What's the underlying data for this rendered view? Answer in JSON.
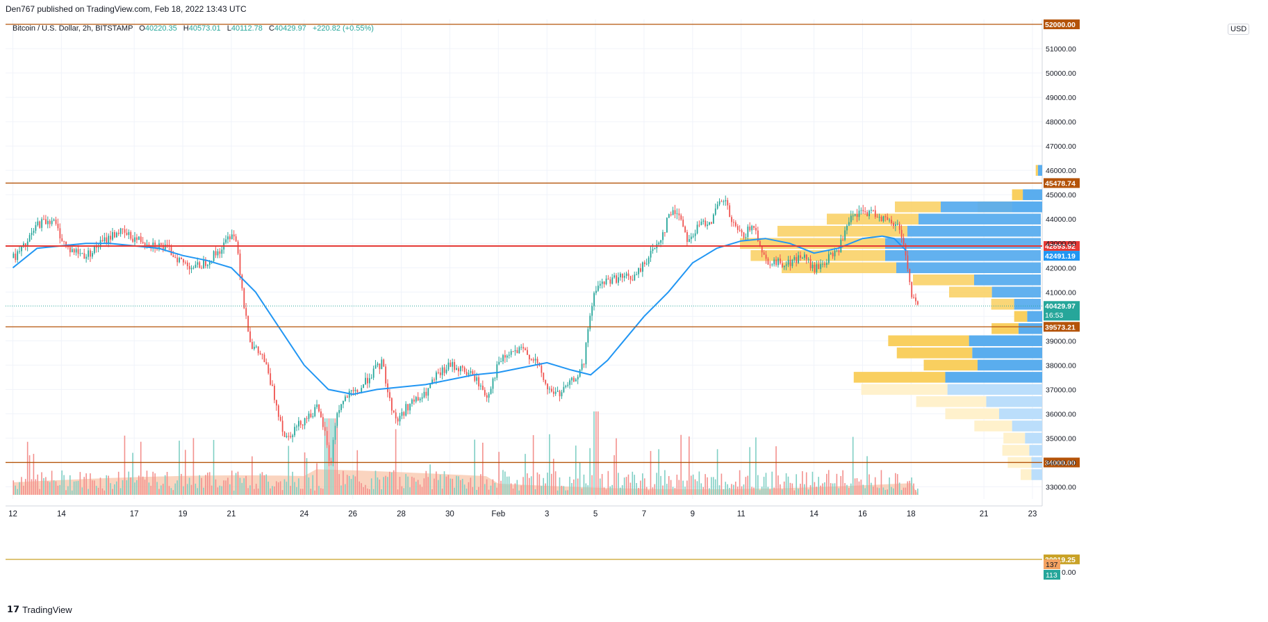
{
  "header": {
    "published": "Den767 published on TradingView.com, Feb 18, 2022 13:43 UTC"
  },
  "legend": {
    "symbol": "Bitcoin / U.S. Dollar, 2h, BITSTAMP",
    "open_label": "O",
    "open": "40220.35",
    "high_label": "H",
    "high": "40573.01",
    "low_label": "L",
    "low": "40112.78",
    "close_label": "C",
    "close": "40429.97",
    "change": "+220.82 (+0.55%)"
  },
  "currency": "USD",
  "footer": {
    "brand": "TradingView"
  },
  "colors": {
    "up": "#26a69a",
    "down": "#ef5350",
    "ma": "#2196f3",
    "level": "#b45309",
    "red_level": "#e53935",
    "vp_up": "#f9cf5f",
    "vp_down": "#5aadee"
  },
  "chart_data": {
    "type": "candlestick",
    "title": "Bitcoin / U.S. Dollar, 2h, BITSTAMP",
    "ylim": [
      32500,
      52200
    ],
    "y_ticks": [
      33000,
      34000,
      35000,
      36000,
      37000,
      38000,
      39000,
      40000,
      41000,
      42000,
      43000,
      44000,
      45000,
      46000,
      47000,
      48000,
      49000,
      50000,
      51000
    ],
    "y_tick_labels": [
      "33000.00",
      "34000.00",
      "35000.00",
      "36000.00",
      "37000.00",
      "38000.00",
      "39000.00",
      "40000.00",
      "41000.00",
      "42000.00",
      "43000.00",
      "44000.00",
      "45000.00",
      "46000.00",
      "47000.00",
      "48000.00",
      "49000.00",
      "50000.00",
      "51000.00"
    ],
    "x_tick_labels": [
      "12",
      "14",
      "17",
      "19",
      "21",
      "24",
      "26",
      "28",
      "30",
      "Feb",
      "3",
      "5",
      "7",
      "9",
      "11",
      "14",
      "16",
      "18",
      "21",
      "23"
    ],
    "x_tick_days": [
      0,
      2,
      5,
      7,
      9,
      12,
      14,
      16,
      18,
      20,
      22,
      24,
      26,
      28,
      30,
      33,
      35,
      37,
      40,
      42
    ],
    "x_day_range": [
      -0.3,
      42.4
    ],
    "last_bar_day": 37.3,
    "price_path": [
      [
        0,
        42400
      ],
      [
        0.5,
        42900
      ],
      [
        1,
        43800
      ],
      [
        1.6,
        44000
      ],
      [
        2.2,
        42800
      ],
      [
        3,
        42500
      ],
      [
        3.6,
        43000
      ],
      [
        4.3,
        43500
      ],
      [
        5,
        43200
      ],
      [
        5.7,
        43000
      ],
      [
        6.3,
        42800
      ],
      [
        7,
        42200
      ],
      [
        7.5,
        42000
      ],
      [
        8,
        42300
      ],
      [
        8.6,
        42800
      ],
      [
        9,
        43500
      ],
      [
        9.2,
        43000
      ],
      [
        9.5,
        40500
      ],
      [
        9.8,
        38800
      ],
      [
        10.3,
        38300
      ],
      [
        10.8,
        36500
      ],
      [
        11.2,
        35000
      ],
      [
        11.6,
        35400
      ],
      [
        12,
        35800
      ],
      [
        12.5,
        36200
      ],
      [
        12.8,
        35400
      ],
      [
        13.05,
        33800
      ],
      [
        13.3,
        36000
      ],
      [
        13.7,
        36700
      ],
      [
        14.2,
        36900
      ],
      [
        14.7,
        37600
      ],
      [
        15.2,
        38100
      ],
      [
        15.5,
        36500
      ],
      [
        15.8,
        35700
      ],
      [
        16.3,
        36400
      ],
      [
        16.9,
        36700
      ],
      [
        17.4,
        37500
      ],
      [
        18,
        38000
      ],
      [
        18.5,
        37800
      ],
      [
        19,
        37500
      ],
      [
        19.5,
        36700
      ],
      [
        20,
        38100
      ],
      [
        20.5,
        38500
      ],
      [
        21,
        38600
      ],
      [
        21.5,
        38200
      ],
      [
        22,
        37000
      ],
      [
        22.5,
        36800
      ],
      [
        23,
        37300
      ],
      [
        23.5,
        38000
      ],
      [
        23.7,
        39800
      ],
      [
        24,
        41200
      ],
      [
        24.5,
        41500
      ],
      [
        25,
        41600
      ],
      [
        25.6,
        41600
      ],
      [
        26,
        42200
      ],
      [
        26.4,
        42800
      ],
      [
        26.8,
        43500
      ],
      [
        27,
        44200
      ],
      [
        27.4,
        44300
      ],
      [
        27.8,
        43100
      ],
      [
        28.3,
        43800
      ],
      [
        28.8,
        44000
      ],
      [
        29,
        44500
      ],
      [
        29.3,
        44800
      ],
      [
        29.6,
        43800
      ],
      [
        30,
        43300
      ],
      [
        30.5,
        43700
      ],
      [
        31,
        42300
      ],
      [
        31.5,
        42200
      ],
      [
        32,
        42200
      ],
      [
        32.5,
        42500
      ],
      [
        33,
        41900
      ],
      [
        33.5,
        42300
      ],
      [
        34,
        42800
      ],
      [
        34.5,
        44000
      ],
      [
        35,
        44300
      ],
      [
        35.6,
        44200
      ],
      [
        36,
        43900
      ],
      [
        36.5,
        43700
      ],
      [
        36.8,
        42300
      ],
      [
        37,
        40800
      ],
      [
        37.3,
        40430
      ]
    ],
    "ma_path": [
      [
        0,
        42000
      ],
      [
        1,
        42800
      ],
      [
        2,
        42900
      ],
      [
        3,
        43000
      ],
      [
        4,
        43000
      ],
      [
        5,
        42900
      ],
      [
        6,
        42800
      ],
      [
        7,
        42500
      ],
      [
        8,
        42300
      ],
      [
        9,
        42000
      ],
      [
        10,
        41000
      ],
      [
        11,
        39500
      ],
      [
        12,
        38000
      ],
      [
        13,
        37000
      ],
      [
        14,
        36800
      ],
      [
        15,
        37000
      ],
      [
        16,
        37100
      ],
      [
        17,
        37200
      ],
      [
        18,
        37400
      ],
      [
        19,
        37600
      ],
      [
        20,
        37700
      ],
      [
        21,
        37900
      ],
      [
        22,
        38100
      ],
      [
        23,
        37800
      ],
      [
        23.8,
        37600
      ],
      [
        24.5,
        38200
      ],
      [
        25,
        38800
      ],
      [
        26,
        40000
      ],
      [
        27,
        41000
      ],
      [
        28,
        42200
      ],
      [
        29,
        42800
      ],
      [
        30,
        43100
      ],
      [
        31,
        43200
      ],
      [
        32,
        43000
      ],
      [
        33,
        42600
      ],
      [
        34,
        42800
      ],
      [
        35,
        43200
      ],
      [
        35.8,
        43300
      ],
      [
        36.3,
        43200
      ],
      [
        36.8,
        42700
      ]
    ],
    "levels": [
      {
        "price": 52000,
        "label": "52000.00",
        "color": "#b45309"
      },
      {
        "price": 45478.74,
        "label": "45478.74",
        "color": "#b45309"
      },
      {
        "price": 42893.92,
        "label": "42893.92",
        "color": "#e53935"
      },
      {
        "price": 39573.21,
        "label": "39573.21",
        "color": "#b45309"
      },
      {
        "price": 34000.0,
        "label": "34000.00",
        "color": "#b45309"
      },
      {
        "price": 30019.25,
        "label": "30019.25",
        "color": "#c9a227"
      }
    ],
    "price_tags": [
      {
        "price": 42491.19,
        "label": "42491.19",
        "color": "#2196f3"
      },
      {
        "price": 40429.97,
        "label": "40429.97",
        "sublabel": "16:53",
        "color": "#26a69a"
      }
    ],
    "volume_tags": [
      {
        "label": "137",
        "color": "#f4a261"
      },
      {
        "label": "113",
        "color": "#26a69a"
      }
    ],
    "volume_profile": {
      "fixed_range": [
        {
          "price": 44500,
          "up": 30,
          "down": 45
        },
        {
          "price": 44000,
          "up": 60,
          "down": 55
        },
        {
          "price": 43500,
          "up": 85,
          "down": 60
        },
        {
          "price": 43000,
          "up": 95,
          "down": 70
        },
        {
          "price": 42500,
          "up": 88,
          "down": 70
        },
        {
          "price": 42000,
          "up": 75,
          "down": 65
        },
        {
          "price": 41500,
          "up": 40,
          "down": 30
        },
        {
          "price": 41000,
          "up": 28,
          "down": 22
        },
        {
          "price": 40500,
          "up": 15,
          "down": 12
        }
      ],
      "visible_range": [
        {
          "price": 46000,
          "up": 2,
          "down": 4
        },
        {
          "price": 45000,
          "up": 10,
          "down": 18
        },
        {
          "price": 44500,
          "up": 32,
          "down": 28
        },
        {
          "price": 40000,
          "up": 12,
          "down": 14
        },
        {
          "price": 39500,
          "up": 25,
          "down": 22
        },
        {
          "price": 39000,
          "up": 75,
          "down": 68
        },
        {
          "price": 38500,
          "up": 70,
          "down": 65
        },
        {
          "price": 38000,
          "up": 50,
          "down": 60
        },
        {
          "price": 37500,
          "up": 85,
          "down": 90
        },
        {
          "price": 37000,
          "up": 80,
          "down": 88
        },
        {
          "price": 36500,
          "up": 65,
          "down": 52
        },
        {
          "price": 36000,
          "up": 50,
          "down": 40
        },
        {
          "price": 35500,
          "up": 35,
          "down": 28
        },
        {
          "price": 35000,
          "up": 20,
          "down": 16
        },
        {
          "price": 34500,
          "up": 25,
          "down": 12
        },
        {
          "price": 34000,
          "up": 22,
          "down": 10
        },
        {
          "price": 33500,
          "up": 10,
          "down": 10
        }
      ]
    }
  }
}
